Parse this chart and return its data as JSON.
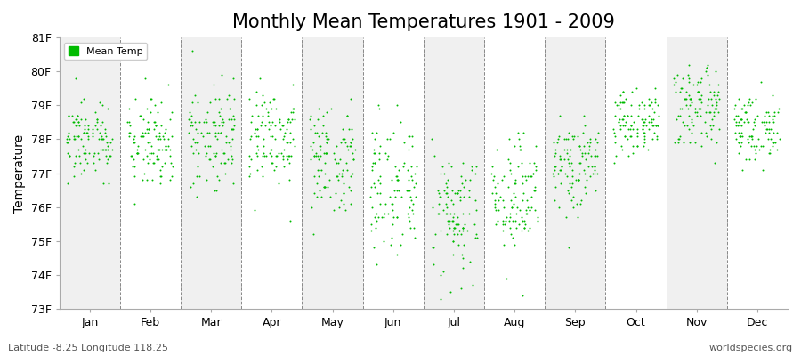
{
  "title": "Monthly Mean Temperatures 1901 - 2009",
  "ylabel": "Temperature",
  "xlabel_bottom": "Latitude -8.25 Longitude 118.25",
  "watermark": "worldspecies.org",
  "ylim": [
    73,
    81
  ],
  "yticks": [
    73,
    74,
    75,
    76,
    77,
    78,
    79,
    80,
    81
  ],
  "ytick_labels": [
    "73F",
    "74F",
    "75F",
    "76F",
    "77F",
    "78F",
    "79F",
    "80F",
    "81F"
  ],
  "months": [
    "Jan",
    "Feb",
    "Mar",
    "Apr",
    "May",
    "Jun",
    "Jul",
    "Aug",
    "Sep",
    "Oct",
    "Nov",
    "Dec"
  ],
  "month_means": [
    78.0,
    77.9,
    78.1,
    78.2,
    77.4,
    76.6,
    75.9,
    76.2,
    77.2,
    78.5,
    79.0,
    78.3
  ],
  "month_stds": [
    0.55,
    0.65,
    0.8,
    0.75,
    0.85,
    1.0,
    1.05,
    0.9,
    0.65,
    0.45,
    0.55,
    0.5
  ],
  "n_years": 109,
  "dot_color": "#00bb00",
  "dot_size": 2,
  "background_colors": [
    "#f0f0f0",
    "#ffffff"
  ],
  "legend_color": "#00bb00",
  "title_fontsize": 15,
  "tick_fontsize": 9,
  "label_fontsize": 10
}
